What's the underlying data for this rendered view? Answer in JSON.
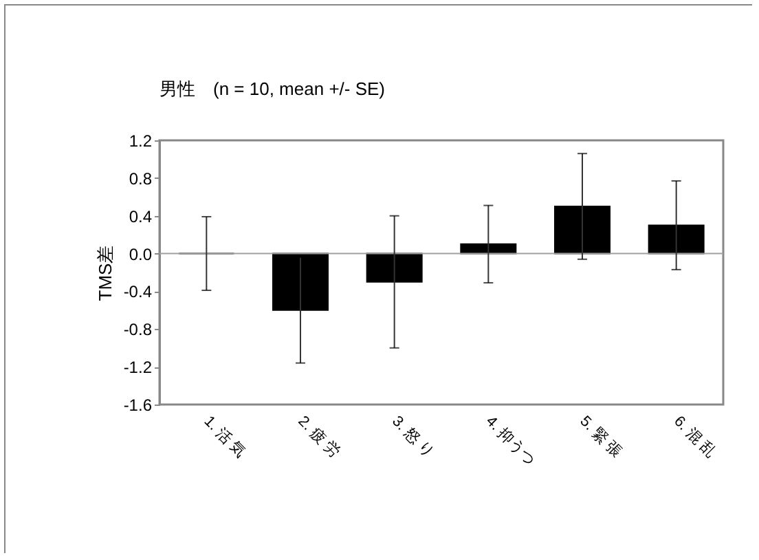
{
  "chart_data": {
    "type": "bar",
    "title": "男性　(n = 10, mean +/- SE)",
    "ylabel": "TMS差",
    "categories": [
      "1. 活 気",
      "2. 疲 労",
      "3. 怒 り",
      "4. 抑うつ",
      "5. 緊 張",
      "6. 混 乱"
    ],
    "values": [
      0.0,
      -0.6,
      -0.3,
      0.1,
      0.5,
      0.3
    ],
    "errors": [
      0.39,
      0.56,
      0.7,
      0.41,
      0.56,
      0.47
    ],
    "color": "#000000",
    "ylim": [
      -1.6,
      1.2
    ],
    "yticks": [
      {
        "value": -1.6,
        "label": "-1.6"
      },
      {
        "value": -1.2,
        "label": "-1.2"
      },
      {
        "value": -0.8,
        "label": "-0.8"
      },
      {
        "value": -0.4,
        "label": "-0.4"
      },
      {
        "value": 0,
        "label": "0.0"
      },
      {
        "value": 0.4,
        "label": "0.4"
      },
      {
        "value": 0.8,
        "label": "0.8"
      },
      {
        "value": 1.2,
        "label": "1.2"
      }
    ],
    "ref_lines": [
      {
        "axis": "y",
        "value": 0,
        "color": "#a0a0a0"
      }
    ],
    "grid": false
  }
}
